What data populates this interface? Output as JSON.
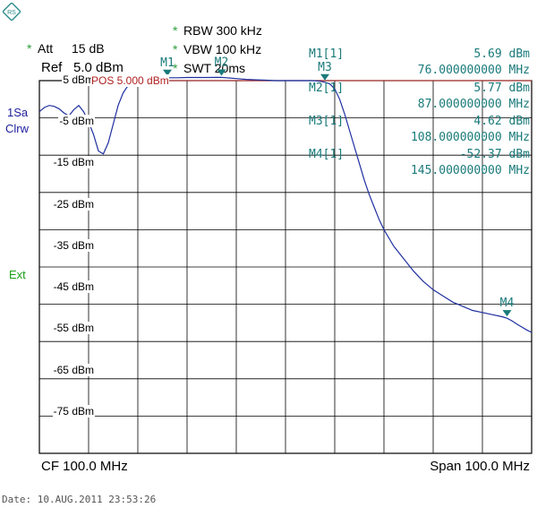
{
  "logo": {
    "text": "RS"
  },
  "header": {
    "att_star": "*",
    "att_label": "Att",
    "att_value": "15 dB",
    "ref_label": "Ref",
    "ref_value": "5.0 dBm",
    "rbw_star": "*",
    "rbw": "RBW 300 kHz",
    "vbw_star": "*",
    "vbw": "VBW 100 kHz",
    "swt_star": "*",
    "swt": "SWT 20ms"
  },
  "side": {
    "trace_mode_1": "1Sa",
    "trace_mode_2": "Clrw",
    "ext": "Ext"
  },
  "markers_table": [
    {
      "name": "M1[1]",
      "level": "5.69 dBm",
      "freq": "76.000000000 MHz"
    },
    {
      "name": "M2[1]",
      "level": "5.77 dBm",
      "freq": "87.000000000 MHz"
    },
    {
      "name": "M3[1]",
      "level": "4.62 dBm",
      "freq": "108.000000000 MHz"
    },
    {
      "name": "M4[1]",
      "level": "-52.37 dBm",
      "freq": "145.000000000 MHz"
    }
  ],
  "footer": {
    "cf": "CF 100.0 MHz",
    "span": "Span 100.0 MHz",
    "date": "Date: 10.AUG.2011   23:53:26"
  },
  "colors": {
    "trace": "#1f2fa0",
    "ref_line": "#b02020",
    "grid": "#000000",
    "marker": "#1a7a7a",
    "star": "#2a9d3a"
  },
  "chart_data": {
    "type": "line",
    "x_unit": "MHz",
    "y_unit": "dBm",
    "xlim": [
      50,
      150
    ],
    "ylim": [
      -85,
      5
    ],
    "grid": true,
    "y_tick_labels": [
      "5 dBm",
      "-5 dBm",
      "-15 dBm",
      "-25 dBm",
      "-35 dBm",
      "-45 dBm",
      "-55 dBm",
      "-65 dBm",
      "-75 dBm"
    ],
    "y_ticks": [
      5,
      -5,
      -15,
      -25,
      -35,
      -45,
      -55,
      -65,
      -75
    ],
    "ref_line": {
      "value": 5,
      "label": "POS  5.000 dBm"
    },
    "markers": [
      {
        "label": "M1",
        "x": 76,
        "y": 5.69
      },
      {
        "label": "M2",
        "x": 87,
        "y": 5.77
      },
      {
        "label": "M3",
        "x": 108,
        "y": 4.62
      },
      {
        "label": "M4",
        "x": 145,
        "y": -52.37
      }
    ],
    "series": [
      {
        "x": [
          50,
          51,
          52,
          53,
          54,
          55,
          56,
          57,
          58,
          59,
          60,
          61,
          62,
          63,
          64,
          65,
          66,
          67,
          68,
          69,
          70,
          71,
          72,
          73,
          74,
          75,
          76,
          78,
          80,
          82,
          84,
          86,
          87,
          88,
          90,
          92,
          94,
          96,
          98,
          100,
          102,
          104,
          105,
          106,
          107,
          108,
          109,
          110,
          111,
          112,
          113,
          114,
          115,
          116,
          117,
          118,
          119,
          120,
          122,
          124,
          126,
          128,
          130,
          132,
          134,
          136,
          138,
          140,
          142,
          144,
          145,
          146,
          147,
          148,
          149,
          150
        ],
        "y": [
          -2.5,
          -1.5,
          -1.0,
          -1.2,
          -1.8,
          -2.8,
          -3.5,
          -2.0,
          -1.0,
          -2.5,
          -5.0,
          -8.0,
          -12.0,
          -12.7,
          -10.0,
          -5.5,
          -1.0,
          2.0,
          3.8,
          4.8,
          5.2,
          5.5,
          5.6,
          5.7,
          5.7,
          5.6,
          5.69,
          5.7,
          5.75,
          5.75,
          5.76,
          5.77,
          5.77,
          5.7,
          5.5,
          5.3,
          5.2,
          5.1,
          5.0,
          5.0,
          5.0,
          5.0,
          5.0,
          4.95,
          4.85,
          4.62,
          4.2,
          3.0,
          0.5,
          -3.0,
          -7.0,
          -11.0,
          -15.0,
          -19.0,
          -22.5,
          -25.5,
          -28.5,
          -31.0,
          -35.0,
          -38.0,
          -41.0,
          -43.5,
          -45.5,
          -47.0,
          -48.5,
          -49.5,
          -50.5,
          -51.0,
          -51.5,
          -52.0,
          -52.37,
          -53.0,
          -53.8,
          -54.5,
          -55.2,
          -55.8
        ]
      }
    ]
  }
}
